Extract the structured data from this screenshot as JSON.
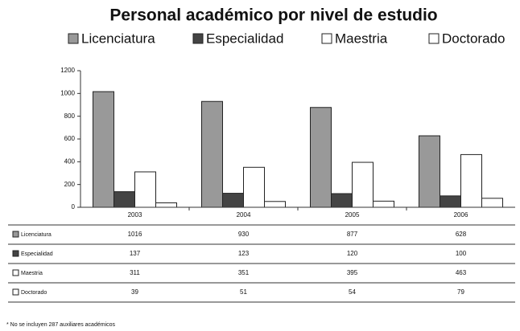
{
  "chart_data": {
    "type": "bar",
    "title": "Personal académico por nivel de estudio",
    "categories": [
      "2003",
      "2004",
      "2005",
      "2006"
    ],
    "series": [
      {
        "name": "Licenciatura",
        "color": "#999999",
        "values": [
          1016,
          930,
          877,
          628
        ]
      },
      {
        "name": "Especialidad",
        "color": "#444444",
        "values": [
          137,
          123,
          120,
          100
        ]
      },
      {
        "name": "Maestria",
        "color": "#ffffff",
        "values": [
          311,
          351,
          395,
          463
        ]
      },
      {
        "name": "Doctorado",
        "color": "#ffffff",
        "values": [
          39,
          51,
          54,
          79
        ]
      }
    ],
    "ylim": [
      0,
      1200
    ],
    "yticks": [
      0,
      200,
      400,
      600,
      800,
      1000,
      1200
    ],
    "footnote": "* No se incluyen 287 auxiliares académicos"
  }
}
